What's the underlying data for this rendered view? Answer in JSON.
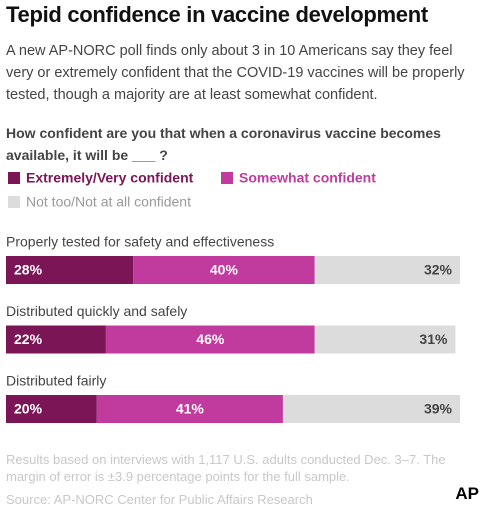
{
  "title": "Tepid confidence in vaccine development",
  "subtitle": "A new AP-NORC poll finds only about 3 in 10 Americans say they feel very or extremely confident that the COVID-19 vaccines will be properly tested, though a majority are at least somewhat confident.",
  "chart_data": {
    "type": "bar",
    "orientation": "horizontal",
    "stacked": true,
    "title": "How confident are you that when a coronavirus vaccine becomes available, it will be ___ ?",
    "categories": [
      "Properly tested for safety and effectiveness",
      "Distributed quickly and safely",
      "Distributed fairly"
    ],
    "xlim": [
      0,
      100
    ],
    "series": [
      {
        "name": "Extremely/Very confident",
        "color": "#7b1556",
        "values": [
          28,
          22,
          20
        ],
        "value_labels": [
          "28%",
          "22%",
          "20%"
        ]
      },
      {
        "name": "Somewhat confident",
        "color": "#c13b9f",
        "values": [
          40,
          46,
          41
        ],
        "value_labels": [
          "40%",
          "46%",
          "41%"
        ]
      },
      {
        "name": "Not too/Not at all confident",
        "color": "#dcdcdc",
        "values": [
          32,
          31,
          39
        ],
        "value_labels": [
          "32%",
          "31%",
          "39%"
        ]
      }
    ]
  },
  "notes": "Results based on interviews with 1,117 U.S. adults conducted Dec. 3–7. The margin of error is ±3.9 percentage points for the full sample.",
  "source": "Source: AP-NORC Center for Public Affairs Research",
  "logo": "AP"
}
